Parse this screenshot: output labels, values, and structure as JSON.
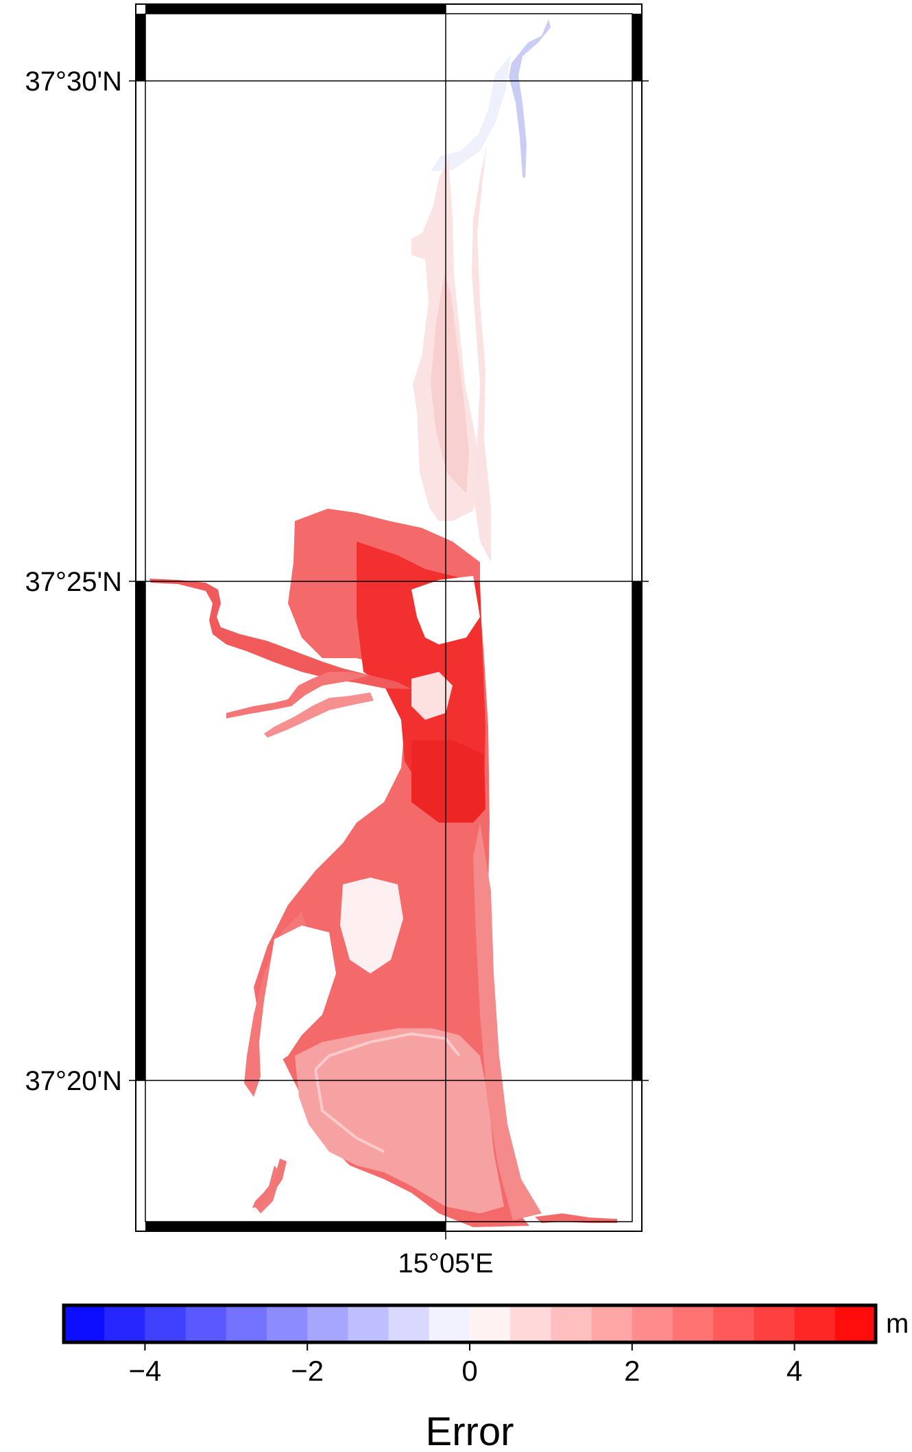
{
  "map": {
    "lat_labels": [
      "37°30'N",
      "37°25'N",
      "37°20'N"
    ],
    "lon_labels": [
      "15°05'E"
    ]
  },
  "colorbar": {
    "min": -5,
    "max": 5,
    "step": 0.5,
    "tick_values": [
      -4,
      -2,
      0,
      2,
      4
    ],
    "tick_labels": [
      "−4",
      "−2",
      "0",
      "2",
      "4"
    ],
    "unit": "m",
    "title": "Error",
    "colors": {
      "negative_end": "#0000ff",
      "zero": "#ffffff",
      "positive_end": "#ff0000"
    }
  }
}
